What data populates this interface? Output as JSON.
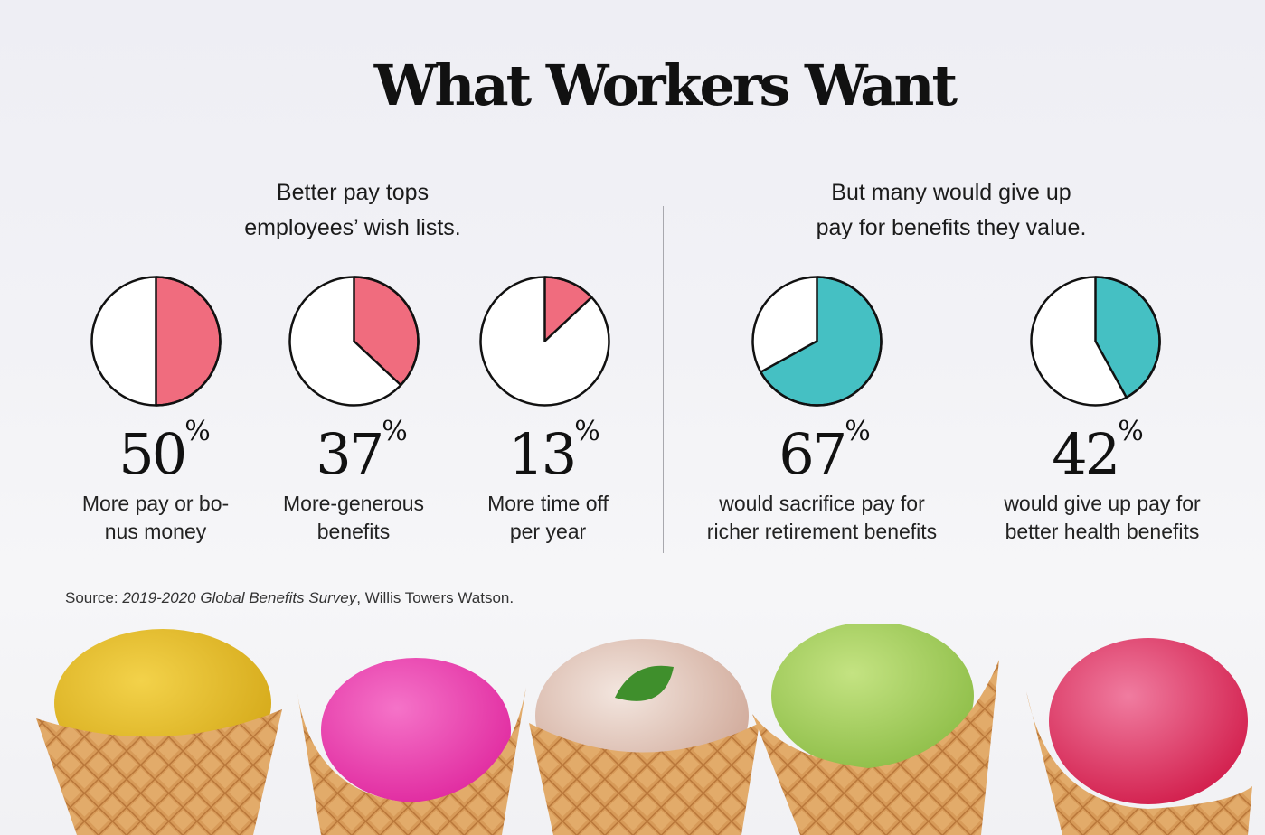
{
  "title": "What Workers Want",
  "left_panel": {
    "subtitle_line1": "Better pay tops",
    "subtitle_line2": "employees’ wish lists."
  },
  "right_panel": {
    "subtitle_line1": "But many would give up",
    "subtitle_line2": "pay for benefits they value."
  },
  "colors": {
    "pink": "#f06c7e",
    "teal": "#45c0c3"
  },
  "chart_data": {
    "type": "pie",
    "charts": [
      {
        "value": 50,
        "label": "50",
        "unit": "%",
        "desc_line1": "More pay or bo-",
        "desc_line2": "nus money",
        "color": "#f06c7e"
      },
      {
        "value": 37,
        "label": "37",
        "unit": "%",
        "desc_line1": "More-generous",
        "desc_line2": "benefits",
        "color": "#f06c7e"
      },
      {
        "value": 13,
        "label": "13",
        "unit": "%",
        "desc_line1": "More time off",
        "desc_line2": "per year",
        "color": "#f06c7e"
      },
      {
        "value": 67,
        "label": "67",
        "unit": "%",
        "desc_line1": "would sacrifice pay for",
        "desc_line2": "richer retirement benefits",
        "color": "#45c0c3"
      },
      {
        "value": 42,
        "label": "42",
        "unit": "%",
        "desc_line1": "would give up pay for",
        "desc_line2": "better health benefits",
        "color": "#45c0c3"
      }
    ]
  },
  "source": {
    "prefix": "Source: ",
    "survey": "2019-2020 Global Benefits Survey",
    "suffix": ", Willis Towers Watson."
  }
}
